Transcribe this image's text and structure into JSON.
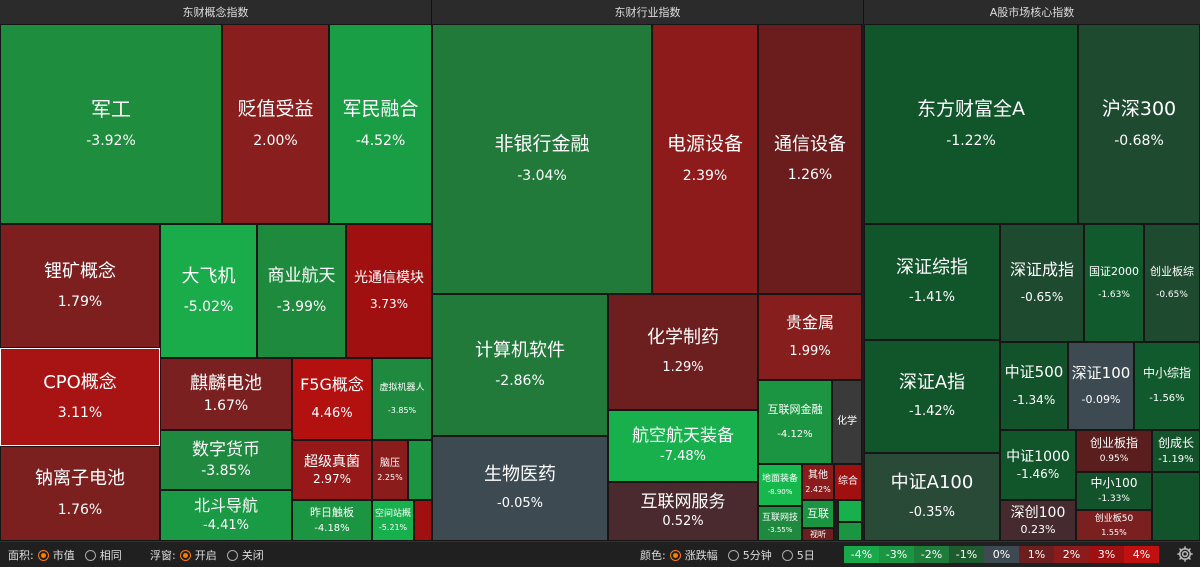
{
  "headers": [
    {
      "label": "东财概念指数"
    },
    {
      "label": "东财行业指数"
    },
    {
      "label": "A股市场核心指数"
    }
  ],
  "tiles": [
    {
      "name": "军工",
      "pct": "-3.92%",
      "color": "#1e8d3e"
    },
    {
      "name": "贬值受益",
      "pct": "2.00%",
      "color": "#891e1e"
    },
    {
      "name": "军民融合",
      "pct": "-4.52%",
      "color": "#1a9e45"
    },
    {
      "name": "锂矿概念",
      "pct": "1.79%",
      "color": "#7e1f1f"
    },
    {
      "name": "大飞机",
      "pct": "-5.02%",
      "color": "#1aac4b"
    },
    {
      "name": "商业航天",
      "pct": "-3.99%",
      "color": "#1e8a3e"
    },
    {
      "name": "光通信模块",
      "pct": "3.73%",
      "color": "#a01010"
    },
    {
      "name": "CPO概念",
      "pct": "3.11%",
      "color": "#a81414"
    },
    {
      "name": "麒麟电池",
      "pct": "1.67%",
      "color": "#7a2020"
    },
    {
      "name": "F5G概念",
      "pct": "4.46%",
      "color": "#b31010"
    },
    {
      "name": "虚拟机器人",
      "pct": "-3.85%",
      "color": "#1f8a3f"
    },
    {
      "name": "钠离子电池",
      "pct": "1.76%",
      "color": "#7c1f1f"
    },
    {
      "name": "数字货币",
      "pct": "-3.85%",
      "color": "#1f8a3f"
    },
    {
      "name": "超级真菌",
      "pct": "2.97%",
      "color": "#961818"
    },
    {
      "name": "脑压",
      "pct": "2.25%",
      "color": "#8a1c1c"
    },
    {
      "name": "北斗导航",
      "pct": "-4.41%",
      "color": "#1a9a44"
    },
    {
      "name": "昨日触板",
      "pct": "-4.18%",
      "color": "#1b9542"
    },
    {
      "name": "空间站概",
      "pct": "-5.21%",
      "color": "#18b04c"
    },
    {
      "name": "非银行金融",
      "pct": "-3.04%",
      "color": "#227a3a"
    },
    {
      "name": "电源设备",
      "pct": "2.39%",
      "color": "#8e1b1b"
    },
    {
      "name": "通信设备",
      "pct": "1.26%",
      "color": "#6b1c1c"
    },
    {
      "name": "计算机软件",
      "pct": "-2.86%",
      "color": "#227a3a"
    },
    {
      "name": "化学制药",
      "pct": "1.29%",
      "color": "#6d1e1e"
    },
    {
      "name": "贵金属",
      "pct": "1.99%",
      "color": "#861e1e"
    },
    {
      "name": "航空航天装备",
      "pct": "-7.48%",
      "color": "#18b04c"
    },
    {
      "name": "互联网金融",
      "pct": "-4.12%",
      "color": "#1b9542"
    },
    {
      "name": "化学",
      "pct": "",
      "color": "#3a3a3a"
    },
    {
      "name": "生物医药",
      "pct": "-0.05%",
      "color": "#3d4a52"
    },
    {
      "name": "互联网服务",
      "pct": "0.52%",
      "color": "#4a2a2e"
    },
    {
      "name": "地面装备",
      "pct": "-8.90%",
      "color": "#16b84e"
    },
    {
      "name": "其他",
      "pct": "2.42%",
      "color": "#8c1c1c"
    },
    {
      "name": "综合",
      "pct": "",
      "color": "#a01010"
    },
    {
      "name": "互联网技",
      "pct": "-3.55%",
      "color": "#1f8a3f"
    },
    {
      "name": "互联",
      "pct": "",
      "color": "#1b9542"
    },
    {
      "name": "视听",
      "pct": "",
      "color": "#6d1e1e"
    },
    {
      "name": "东方财富全A",
      "pct": "-1.22%",
      "color": "#11552b"
    },
    {
      "name": "沪深300",
      "pct": "-0.68%",
      "color": "#1e4a30"
    },
    {
      "name": "深证综指",
      "pct": "-1.41%",
      "color": "#11552b"
    },
    {
      "name": "深证成指",
      "pct": "-0.65%",
      "color": "#1e4a30"
    },
    {
      "name": "国证2000",
      "pct": "-1.63%",
      "color": "#115a2d"
    },
    {
      "name": "创业板综",
      "pct": "-0.65%",
      "color": "#1e4a30"
    },
    {
      "name": "深证A指",
      "pct": "-1.42%",
      "color": "#11552b"
    },
    {
      "name": "中证500",
      "pct": "-1.34%",
      "color": "#13532b"
    },
    {
      "name": "深证100",
      "pct": "-0.09%",
      "color": "#3d4a52"
    },
    {
      "name": "中小综指",
      "pct": "-1.56%",
      "color": "#115a2d"
    },
    {
      "name": "中证1000",
      "pct": "-1.46%",
      "color": "#11552b"
    },
    {
      "name": "创业板指",
      "pct": "0.95%",
      "color": "#5a1e1e"
    },
    {
      "name": "创成长",
      "pct": "-1.19%",
      "color": "#13532b"
    },
    {
      "name": "中证A100",
      "pct": "-0.35%",
      "color": "#2a4a38"
    },
    {
      "name": "中小100",
      "pct": "-1.33%",
      "color": "#13532b"
    },
    {
      "name": "深创100",
      "pct": "0.23%",
      "color": "#452a30"
    },
    {
      "name": "创业板50",
      "pct": "1.55%",
      "color": "#7a2020"
    }
  ],
  "footer": {
    "area_label": "面积:",
    "area_options": [
      {
        "label": "市值",
        "selected": true
      },
      {
        "label": "相同",
        "selected": false
      }
    ],
    "float_label": "浮窗:",
    "float_options": [
      {
        "label": "开启",
        "selected": true
      },
      {
        "label": "关闭",
        "selected": false
      }
    ],
    "color_label": "颜色:",
    "color_options": [
      {
        "label": "涨跌幅",
        "selected": true
      },
      {
        "label": "5分钟",
        "selected": false
      },
      {
        "label": "5日",
        "selected": false
      }
    ],
    "legend": [
      {
        "label": "-4%",
        "color": "#19a84a"
      },
      {
        "label": "-3%",
        "color": "#1b9542"
      },
      {
        "label": "-2%",
        "color": "#1e7d3b"
      },
      {
        "label": "-1%",
        "color": "#1e5c30"
      },
      {
        "label": "0%",
        "color": "#3d4a52"
      },
      {
        "label": "1%",
        "color": "#6d1e1e"
      },
      {
        "label": "2%",
        "color": "#8c1c1c"
      },
      {
        "label": "3%",
        "color": "#a01010"
      },
      {
        "label": "4%",
        "color": "#c01010"
      }
    ],
    "settings_icon": "gear-icon"
  }
}
